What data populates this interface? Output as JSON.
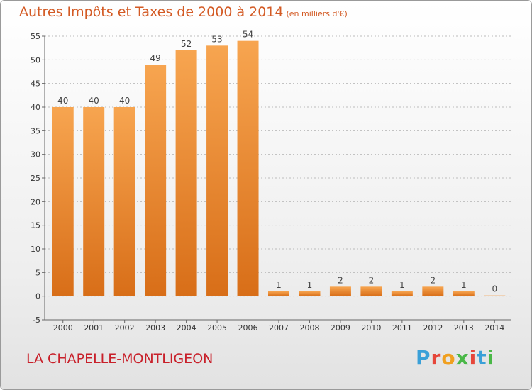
{
  "header": {
    "title": "Autres Impôts et Taxes de 2000 à 2014",
    "unit": "(en milliers d'€)"
  },
  "footer": {
    "commune": "LA CHAPELLE-MONTLIGEON",
    "logo_text": "Proxiti"
  },
  "colors": {
    "bar": "#f08c2c",
    "title": "#d35a24",
    "commune": "#c8202a",
    "grid": "#bbbbbb",
    "logo": [
      "#3aa0d8",
      "#e6463a",
      "#f0a020",
      "#4ab848",
      "#e6463a",
      "#3aa0d8",
      "#4ab848"
    ]
  },
  "chart_data": {
    "type": "bar",
    "title": "Autres Impôts et Taxes de 2000 à 2014",
    "subtitle": "(en milliers d'€)",
    "categories": [
      "2000",
      "2001",
      "2002",
      "2003",
      "2004",
      "2005",
      "2006",
      "2007",
      "2008",
      "2009",
      "2010",
      "2011",
      "2012",
      "2013",
      "2014"
    ],
    "values": [
      40,
      40,
      40,
      49,
      52,
      53,
      54,
      1,
      1,
      2,
      2,
      1,
      2,
      1,
      0
    ],
    "data_labels": [
      "40",
      "40",
      "40",
      "49",
      "52",
      "53",
      "54",
      "1",
      "1",
      "2",
      "2",
      "1",
      "2",
      "1",
      "0"
    ],
    "ylim": [
      -5,
      55
    ],
    "yticks": [
      "-5",
      "0",
      "5",
      "10",
      "15",
      "20",
      "25",
      "30",
      "35",
      "40",
      "45",
      "50",
      "55"
    ],
    "xlabel": "",
    "ylabel": "",
    "grid": true
  }
}
